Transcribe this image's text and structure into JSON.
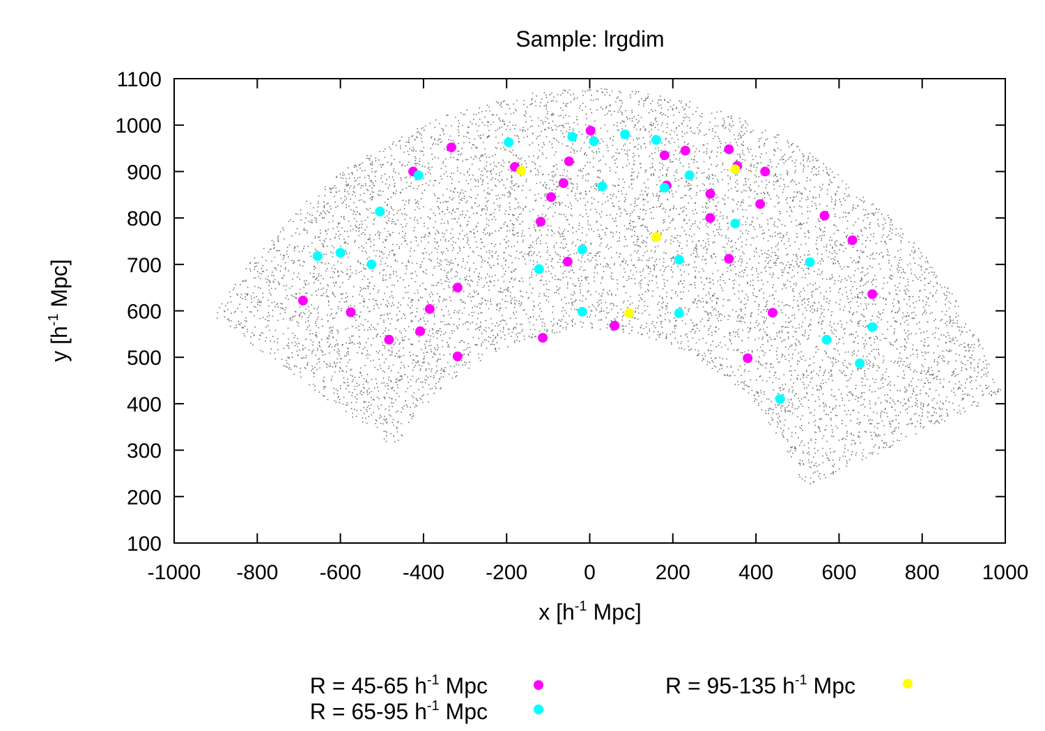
{
  "chart_data": {
    "type": "scatter",
    "title": "Sample: lrgdim",
    "xlabel": {
      "pre": "x [h",
      "sup": "-1",
      "post": " Mpc]"
    },
    "ylabel": {
      "pre": "y [h",
      "sup": "-1",
      "post": " Mpc]"
    },
    "xlim": [
      -1000,
      1000
    ],
    "ylim": [
      100,
      1100
    ],
    "xticks": [
      -1000,
      -800,
      -600,
      -400,
      -200,
      0,
      200,
      400,
      600,
      800,
      1000
    ],
    "yticks": [
      100,
      200,
      300,
      400,
      500,
      600,
      700,
      800,
      900,
      1000,
      1100
    ],
    "grid": false,
    "legend_position": "bottom",
    "background_galaxies": {
      "name": "galaxies",
      "color": "#707070",
      "count": 9000,
      "shape": "annular sector (wedge) around origin",
      "r_min": 560,
      "r_max": 1080,
      "angle_left_deg": 147,
      "angle_right_deg": 23
    },
    "series": [
      {
        "name": "R = 45-65 h-1 Mpc",
        "legend": {
          "pre": "R = 45-65 h",
          "sup": "-1",
          "post": " Mpc"
        },
        "color": "#ff00ff",
        "points": [
          [
            -690,
            622
          ],
          [
            -575,
            597
          ],
          [
            -483,
            538
          ],
          [
            -408,
            556
          ],
          [
            -385,
            604
          ],
          [
            -318,
            650
          ],
          [
            -318,
            502
          ],
          [
            -333,
            952
          ],
          [
            -425,
            900
          ],
          [
            -180,
            910
          ],
          [
            -118,
            792
          ],
          [
            -113,
            542
          ],
          [
            -93,
            845
          ],
          [
            -63,
            875
          ],
          [
            -50,
            922
          ],
          [
            -53,
            706
          ],
          [
            2,
            988
          ],
          [
            60,
            568
          ],
          [
            180,
            935
          ],
          [
            185,
            870
          ],
          [
            230,
            945
          ],
          [
            290,
            852
          ],
          [
            290,
            800
          ],
          [
            335,
            948
          ],
          [
            335,
            712
          ],
          [
            355,
            912
          ],
          [
            380,
            498
          ],
          [
            410,
            830
          ],
          [
            422,
            900
          ],
          [
            440,
            596
          ],
          [
            565,
            805
          ],
          [
            632,
            752
          ],
          [
            680,
            636
          ]
        ]
      },
      {
        "name": "R = 65-95 h-1 Mpc",
        "legend": {
          "pre": "R = 65-95 h",
          "sup": "-1",
          "post": " Mpc"
        },
        "color": "#00ffff",
        "points": [
          [
            -655,
            718
          ],
          [
            -600,
            725
          ],
          [
            -525,
            700
          ],
          [
            -505,
            814
          ],
          [
            -412,
            892
          ],
          [
            -195,
            963
          ],
          [
            -122,
            690
          ],
          [
            -42,
            975
          ],
          [
            -18,
            732
          ],
          [
            -18,
            598
          ],
          [
            10,
            965
          ],
          [
            30,
            868
          ],
          [
            85,
            980
          ],
          [
            160,
            968
          ],
          [
            180,
            865
          ],
          [
            215,
            710
          ],
          [
            215,
            595
          ],
          [
            240,
            892
          ],
          [
            350,
            788
          ],
          [
            458,
            410
          ],
          [
            530,
            705
          ],
          [
            570,
            538
          ],
          [
            650,
            487
          ],
          [
            680,
            565
          ]
        ]
      },
      {
        "name": "R = 95-135 h-1 Mpc",
        "legend": {
          "pre": "R = 95-135 h",
          "sup": "-1",
          "post": " Mpc"
        },
        "color": "#ffff00",
        "points": [
          [
            -165,
            902
          ],
          [
            95,
            595
          ],
          [
            160,
            759
          ],
          [
            350,
            905
          ]
        ]
      }
    ]
  }
}
